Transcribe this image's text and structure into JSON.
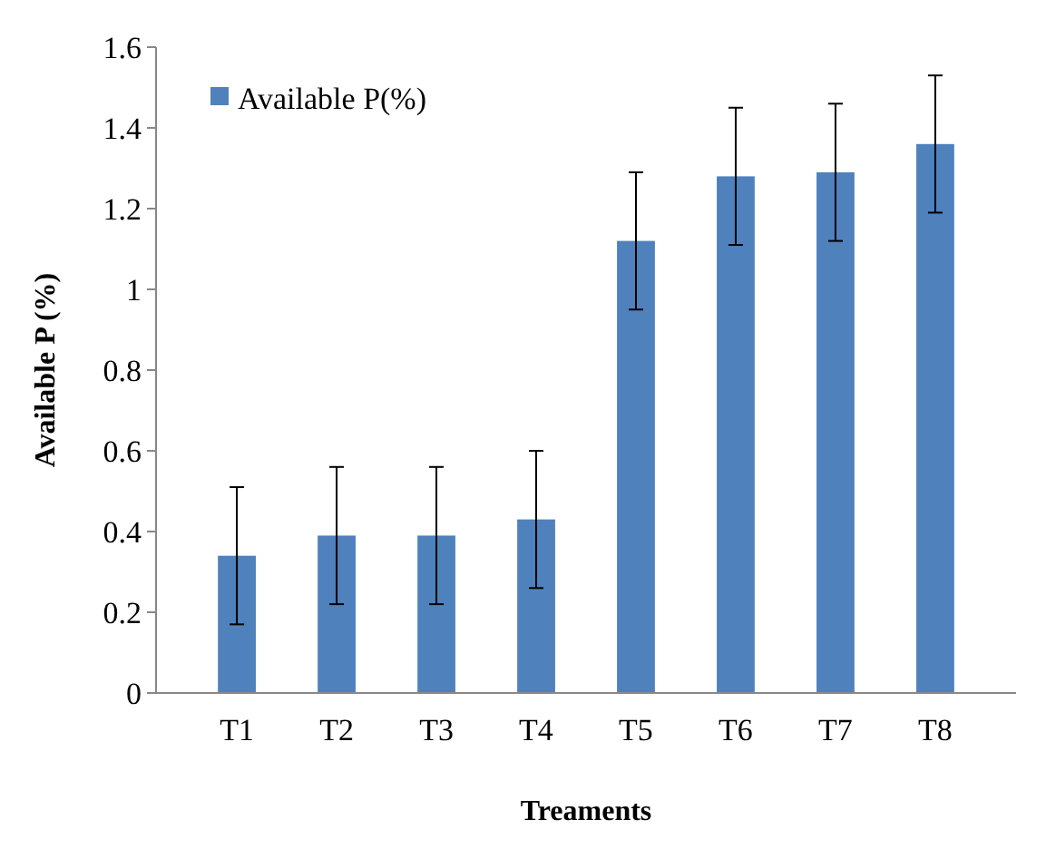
{
  "chart_data": {
    "type": "bar",
    "xlabel": "Treaments",
    "ylabel": "Available P (%)",
    "categories": [
      "T1",
      "T2",
      "T3",
      "T4",
      "T5",
      "T6",
      "T7",
      "T8"
    ],
    "series": [
      {
        "name": "Available P(%)",
        "color": "#4f81bd",
        "values": [
          0.34,
          0.39,
          0.39,
          0.43,
          1.12,
          1.28,
          1.29,
          1.36
        ],
        "errors": [
          0.17,
          0.17,
          0.17,
          0.17,
          0.17,
          0.17,
          0.17,
          0.17
        ]
      }
    ],
    "ylim": [
      0,
      1.6
    ],
    "yticks": [
      0,
      0.2,
      0.4,
      0.6,
      0.8,
      1,
      1.2,
      1.4,
      1.6
    ],
    "legend": "top left",
    "grid": false
  }
}
